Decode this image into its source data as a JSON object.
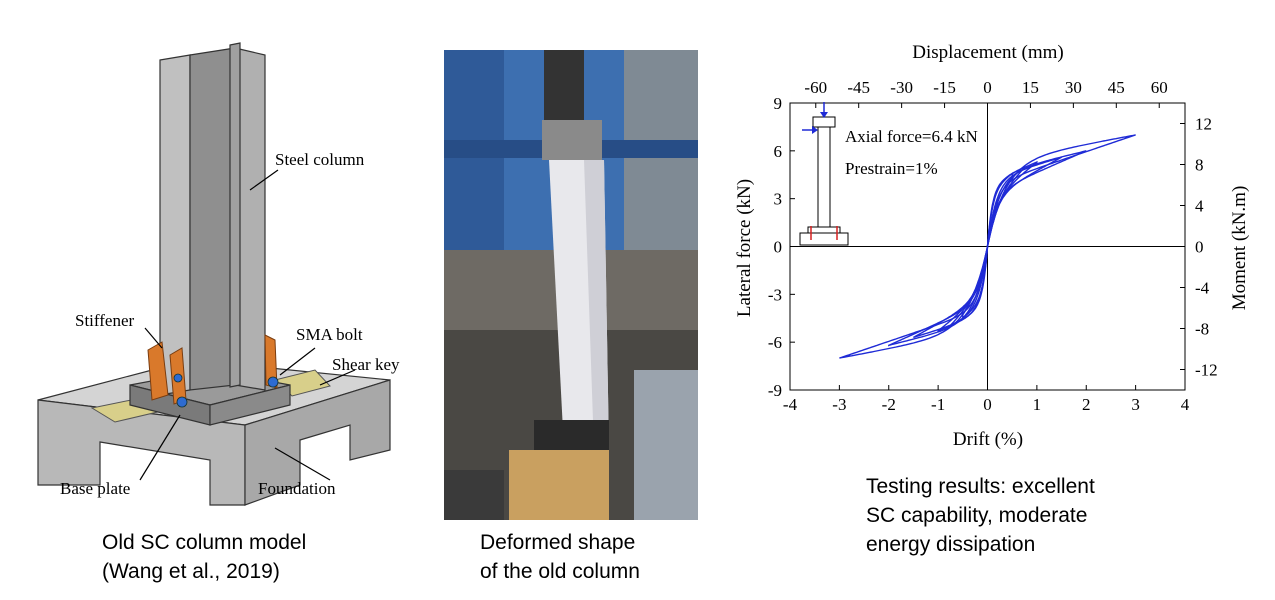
{
  "model": {
    "labels": {
      "steel_column": "Steel column",
      "stiffener": "Stiffener",
      "sma_bolt": "SMA bolt",
      "shear_key": "Shear key",
      "base_plate": "Base plate",
      "foundation": "Foundation"
    },
    "caption": [
      "Old SC column model",
      "(Wang et al., 2019)"
    ]
  },
  "photo": {
    "caption": [
      "Deformed shape",
      "of the old column"
    ]
  },
  "chart_data": {
    "type": "line",
    "xlabel": "Drift (%)",
    "ylabel": "Lateral force (kN)",
    "x2label": "Displacement (mm)",
    "y2label": "Moment (kN.m)",
    "xlim": [
      -4,
      4
    ],
    "ylim": [
      -9,
      9
    ],
    "x2lim": [
      -69,
      69
    ],
    "y2lim": [
      -14,
      14
    ],
    "xticks": [
      -4,
      -3,
      -2,
      -1,
      0,
      1,
      2,
      3,
      4
    ],
    "yticks": [
      -9,
      -6,
      -3,
      0,
      3,
      6,
      9
    ],
    "x2ticks": [
      -60,
      -45,
      -30,
      -15,
      0,
      15,
      30,
      45,
      60
    ],
    "y2ticks": [
      -12,
      -8,
      -4,
      0,
      4,
      8,
      12
    ],
    "annotations": [
      "Axial force=6.4 kN",
      "Prestrain=1%"
    ],
    "line_color": "#1f2bd6",
    "series": [
      {
        "loops": [
          {
            "amp": 0.5,
            "peak": 4.6,
            "neg_peak": -4.5
          },
          {
            "amp": 0.75,
            "peak": 5.0,
            "neg_peak": -5.0
          },
          {
            "amp": 1.0,
            "peak": 5.3,
            "neg_peak": -5.3
          },
          {
            "amp": 1.5,
            "peak": 5.6,
            "neg_peak": -5.7
          },
          {
            "amp": 2.0,
            "peak": 6.0,
            "neg_peak": -6.2
          },
          {
            "amp": 3.0,
            "peak": 7.0,
            "neg_peak": -7.0
          }
        ]
      }
    ]
  },
  "results_caption": [
    "Testing results: excellent",
    "SC capability, moderate",
    "energy dissipation"
  ]
}
